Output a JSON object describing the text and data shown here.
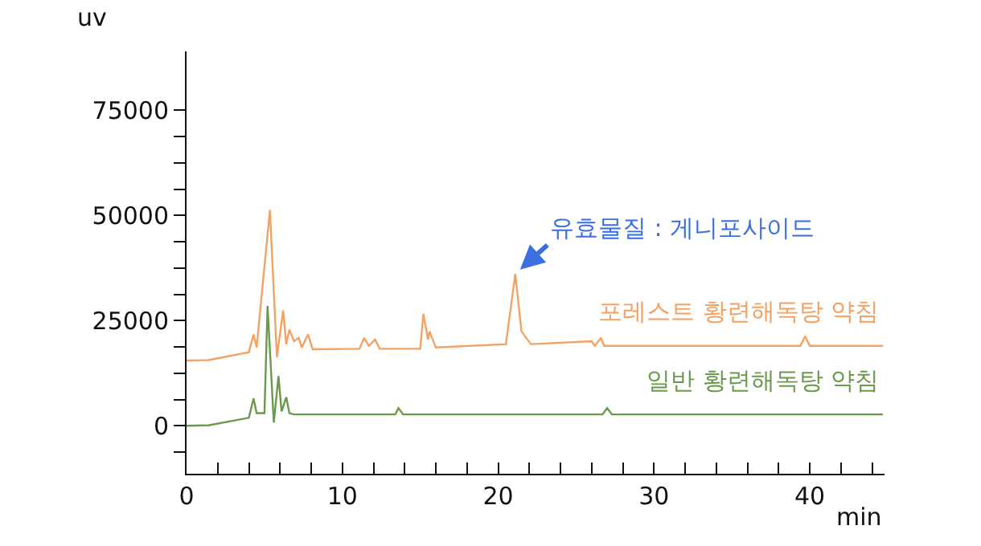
{
  "chart_data": {
    "type": "line",
    "xlabel": "min",
    "ylabel": "uv",
    "annotations": [
      {
        "text": "유효물질 : 게니포사이드",
        "x": 21.1,
        "y": 36100
      }
    ],
    "xlim": [
      0,
      44.8
    ],
    "ylim": [
      -11400,
      89000
    ],
    "xticks": [
      0,
      {
        "value": 2,
        "label": null
      },
      {
        "value": 4,
        "label": null
      },
      {
        "value": 6,
        "label": null
      },
      {
        "value": 8,
        "label": null
      },
      10,
      {
        "value": 12,
        "label": null
      },
      {
        "value": 14,
        "label": null
      },
      {
        "value": 16,
        "label": null
      },
      {
        "value": 18,
        "label": null
      },
      20,
      {
        "value": 22,
        "label": null
      },
      {
        "value": 24,
        "label": null
      },
      {
        "value": 26,
        "label": null
      },
      {
        "value": 28,
        "label": null
      },
      30,
      {
        "value": 32,
        "label": null
      },
      {
        "value": 34,
        "label": null
      },
      {
        "value": 36,
        "label": null
      },
      {
        "value": 38,
        "label": null
      },
      40,
      {
        "value": 42,
        "label": null
      },
      {
        "value": 44,
        "label": null
      }
    ],
    "yticks": [
      {
        "value": -6250,
        "label": null
      },
      0,
      {
        "value": 6250,
        "label": null
      },
      {
        "value": 12500,
        "label": null
      },
      {
        "value": 18750,
        "label": null
      },
      25000,
      {
        "value": 31250,
        "label": null
      },
      {
        "value": 37500,
        "label": null
      },
      {
        "value": 43750,
        "label": null
      },
      50000,
      {
        "value": 56250,
        "label": null
      },
      {
        "value": 62500,
        "label": null
      },
      {
        "value": 68750,
        "label": null
      },
      75000
    ],
    "grid": false,
    "legend": false,
    "marker": "none",
    "line_style": "solid",
    "series": [
      {
        "name": "포레스트 황련해독탕 약침",
        "color": "#f4a263",
        "x": [
          0,
          1.4,
          4.0,
          4.3,
          4.5,
          5.35,
          5.8,
          6.2,
          6.4,
          6.6,
          6.9,
          7.2,
          7.4,
          7.8,
          8.1,
          11.1,
          11.4,
          11.7,
          12.1,
          12.4,
          15.0,
          15.2,
          15.5,
          15.6,
          16.0,
          20.5,
          21.1,
          21.5,
          22.1,
          26.0,
          26.2,
          26.6,
          26.8,
          39.4,
          39.7,
          40.0,
          44.7
        ],
        "values": [
          15500,
          15600,
          17500,
          21700,
          18600,
          51300,
          16300,
          27400,
          19400,
          22800,
          20100,
          20900,
          18600,
          21700,
          18200,
          18300,
          20900,
          19000,
          20500,
          18300,
          18300,
          26600,
          20500,
          22400,
          18600,
          19400,
          36100,
          22400,
          19400,
          20100,
          19000,
          20900,
          19000,
          19000,
          21300,
          19000,
          19000
        ]
      },
      {
        "name": "일반 황련해독탕 약침",
        "color": "#6a9a4c",
        "x": [
          0,
          1.4,
          4.0,
          4.3,
          4.5,
          5.0,
          5.2,
          5.6,
          5.9,
          6.1,
          6.4,
          6.6,
          6.9,
          13.4,
          13.6,
          13.9,
          26.7,
          27.0,
          27.3,
          44.7
        ],
        "values": [
          0,
          100,
          1900,
          6500,
          3000,
          3000,
          28500,
          760,
          11800,
          3400,
          6800,
          3000,
          2700,
          2700,
          4200,
          2700,
          2700,
          4200,
          2700,
          2700
        ]
      }
    ]
  }
}
